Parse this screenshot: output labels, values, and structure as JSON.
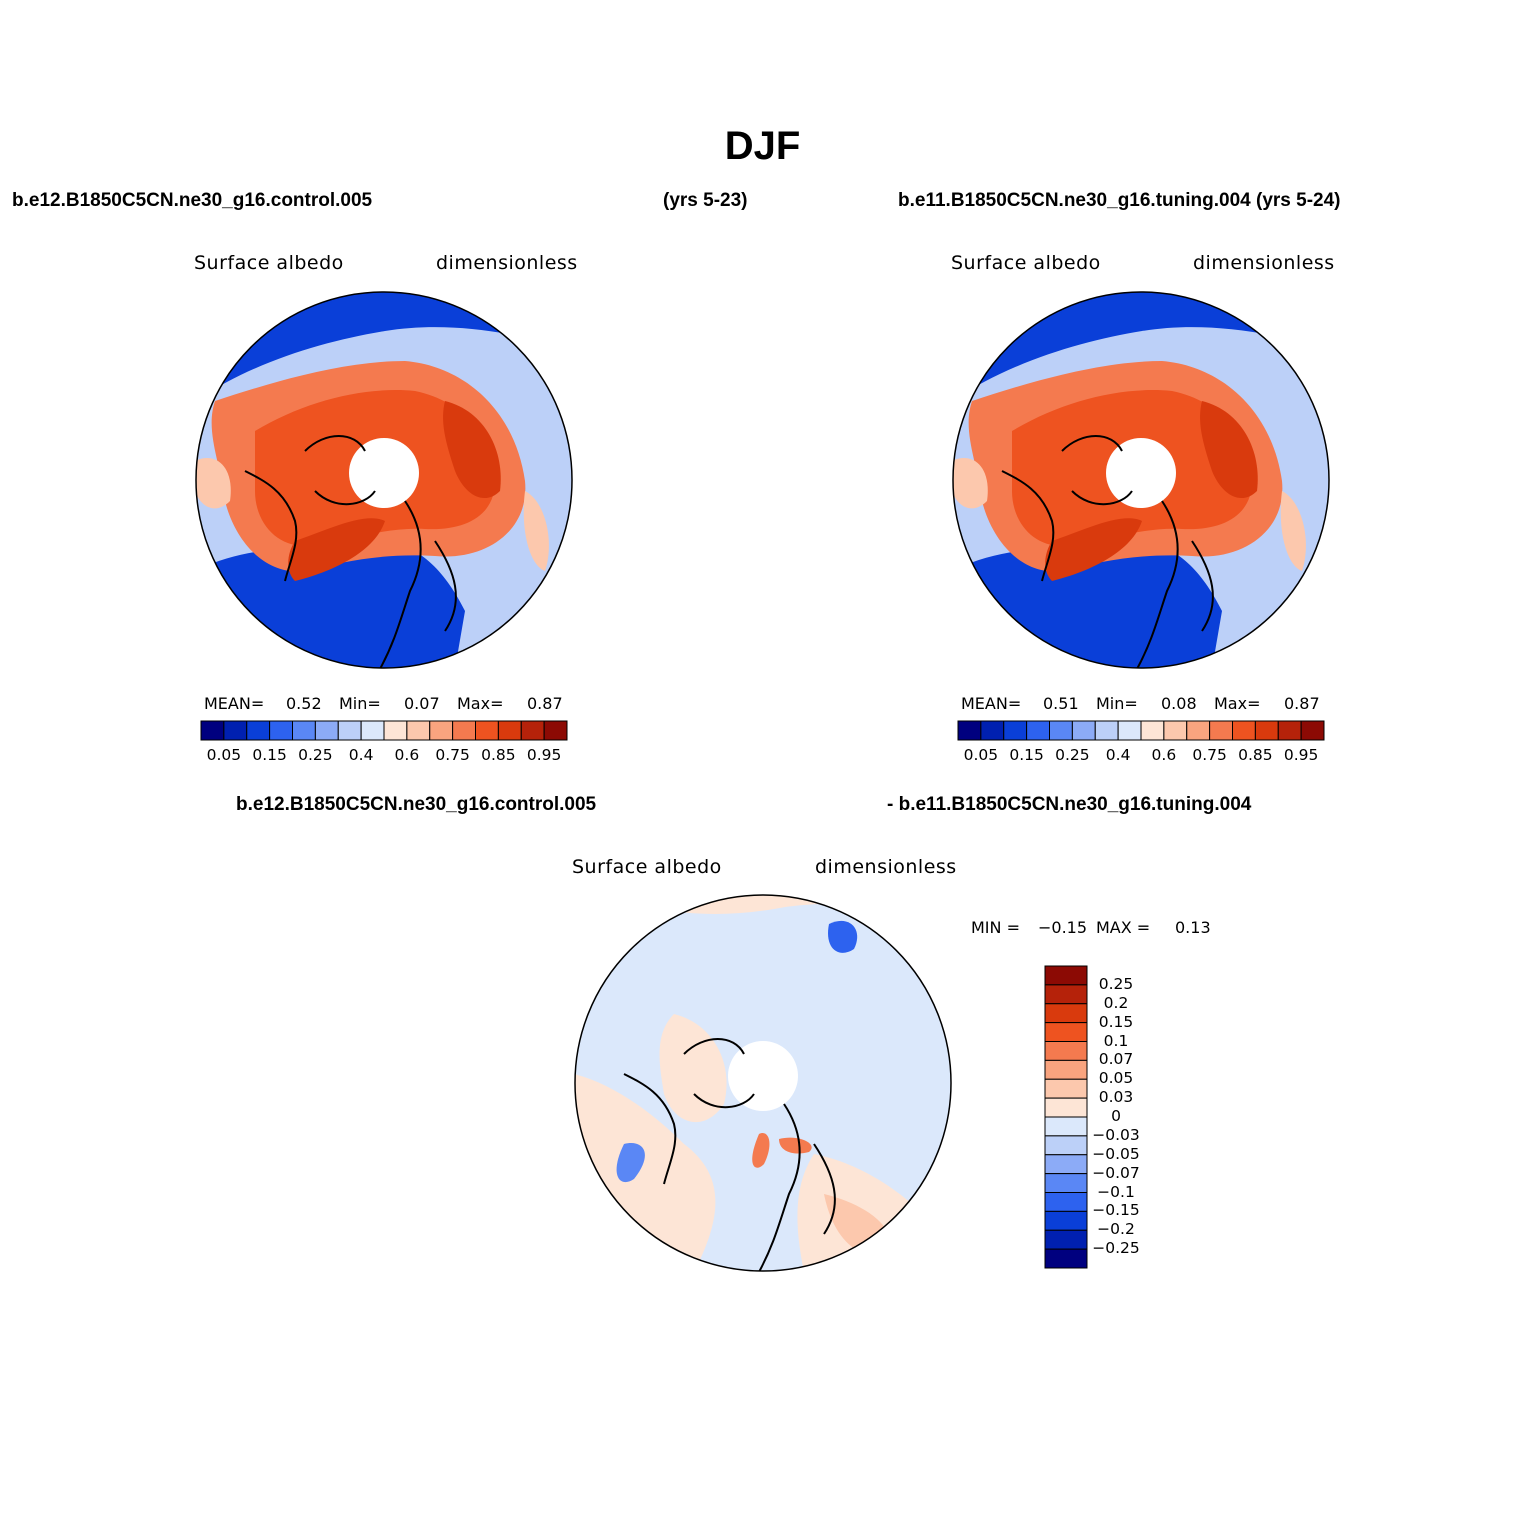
{
  "title": "DJF",
  "panels": [
    {
      "case_name": "b.e12.B1850C5CN.ne30_g16.control.005",
      "years": "(yrs 5-23)",
      "variable": "Surface albedo",
      "units": "dimensionless",
      "stats": {
        "mean_label": "MEAN=",
        "mean": "0.52",
        "min_label": "Min=",
        "min": "0.07",
        "max_label": "Max=",
        "max": "0.87"
      },
      "colorbar_ticks": [
        "0.05",
        "0.15",
        "0.25",
        "0.4",
        "0.6",
        "0.75",
        "0.85",
        "0.95"
      ]
    },
    {
      "case_name": "b.e11.B1850C5CN.ne30_g16.tuning.004 (yrs 5-24)",
      "variable": "Surface albedo",
      "units": "dimensionless",
      "stats": {
        "mean_label": "MEAN=",
        "mean": "0.51",
        "min_label": "Min=",
        "min": "0.08",
        "max_label": "Max=",
        "max": "0.87"
      },
      "colorbar_ticks": [
        "0.05",
        "0.15",
        "0.25",
        "0.4",
        "0.6",
        "0.75",
        "0.85",
        "0.95"
      ]
    }
  ],
  "diff_panel": {
    "case_a": "b.e12.B1850C5CN.ne30_g16.control.005",
    "case_b": "- b.e11.B1850C5CN.ne30_g16.tuning.004",
    "variable": "Surface albedo",
    "units": "dimensionless",
    "stats": {
      "min_label": "MIN =",
      "min": "−0.15",
      "max_label": "MAX =",
      "max": "0.13"
    },
    "colorbar_ticks": [
      "0.25",
      "0.2",
      "0.15",
      "0.1",
      "0.07",
      "0.05",
      "0.03",
      "0",
      "−0.03",
      "−0.05",
      "−0.07",
      "−0.1",
      "−0.15",
      "−0.2",
      "−0.25"
    ]
  },
  "colors": {
    "abs_scale": [
      "#00007f",
      "#0020b0",
      "#0a3fd8",
      "#2d62ef",
      "#5a87f5",
      "#8cabf7",
      "#bcd0f8",
      "#dbe8fb",
      "#fde5d6",
      "#fcc8ad",
      "#f9a47f",
      "#f47a4f",
      "#ee5320",
      "#d93a0d",
      "#b5220a",
      "#8c0a04"
    ],
    "diff_scale": [
      "#00007f",
      "#0020b0",
      "#0a3fd8",
      "#2d62ef",
      "#5a87f5",
      "#8cabf7",
      "#bcd0f8",
      "#dbe8fb",
      "#fde5d6",
      "#fcc8ad",
      "#f9a47f",
      "#f47a4f",
      "#ee5320",
      "#d93a0d",
      "#b5220a",
      "#8c0a04"
    ]
  }
}
